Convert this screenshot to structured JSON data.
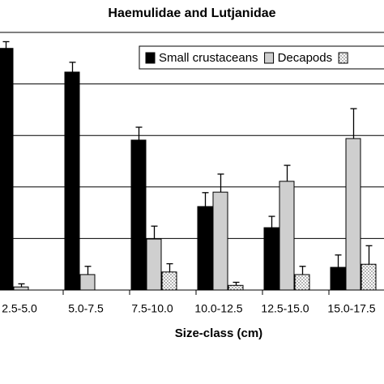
{
  "chart_data": {
    "type": "bar",
    "title": "Haemulidae and Lutjanidae",
    "x_label": "Size-class (cm)",
    "categories": [
      "2.5-5.0",
      "5.0-7.5",
      "7.5-10.0",
      "10.0-12.5",
      "12.5-15.0",
      "15.0-17.5"
    ],
    "series": [
      {
        "name": "Small crustaceans",
        "color": "#000000",
        "values": [
          4.69,
          4.23,
          2.91,
          1.62,
          1.21,
          0.44
        ],
        "errors": [
          0.13,
          0.19,
          0.25,
          0.27,
          0.22,
          0.24
        ]
      },
      {
        "name": "Decapods",
        "color": "#cfcfcf",
        "values": [
          0.06,
          0.3,
          0.99,
          1.9,
          2.11,
          2.94
        ],
        "errors": [
          0.06,
          0.16,
          0.25,
          0.35,
          0.31,
          0.58
        ]
      },
      {
        "color": "#ffffff",
        "pattern": "dots",
        "values": [
          0,
          0,
          0.35,
          0.09,
          0.3,
          0.5
        ],
        "errors": [
          null,
          null,
          0.16,
          0.06,
          0.16,
          0.36
        ]
      }
    ],
    "ylim": [
      0,
      5
    ],
    "yticks": [
      1,
      2,
      3,
      4
    ],
    "show_ytick_labels": false,
    "grid": true,
    "legend": "top-right"
  }
}
